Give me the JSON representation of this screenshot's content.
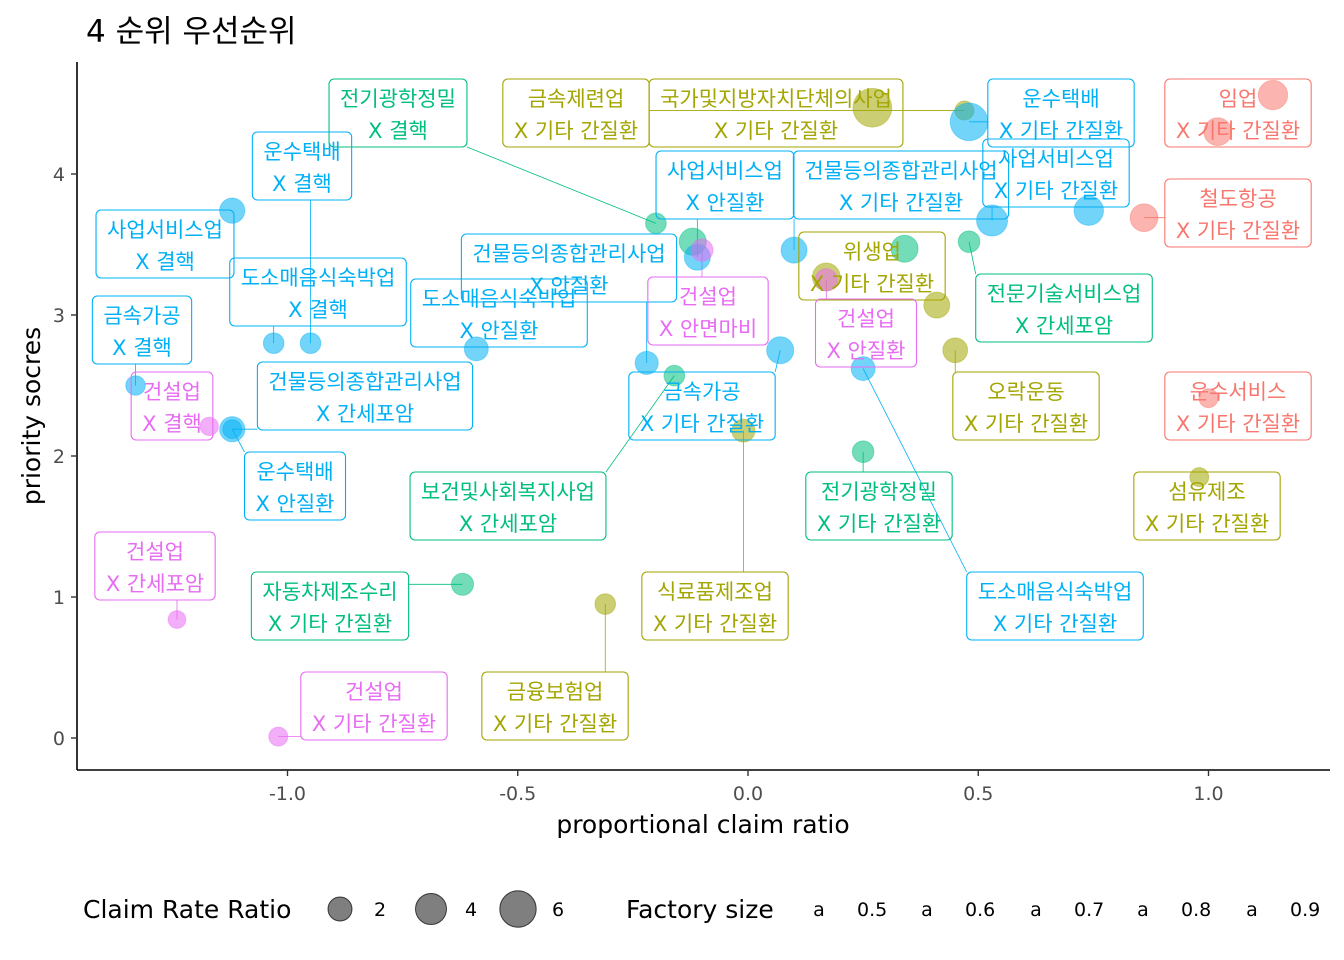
{
  "chart_data": {
    "type": "scatter",
    "title": "4 순위 우선순위",
    "xlabel": "proportional claim ratio",
    "ylabel": "priority socres",
    "xlim": [
      -1.46,
      1.26
    ],
    "ylim": [
      -0.22,
      4.75
    ],
    "x_ticks": [
      -1.0,
      -0.5,
      0.0,
      0.5,
      1.0
    ],
    "x_tick_labels": [
      "-1.0",
      "-0.5",
      "0.0",
      "0.5",
      "1.0"
    ],
    "y_ticks": [
      0,
      1,
      2,
      3,
      4
    ],
    "y_tick_labels": [
      "0",
      "1",
      "2",
      "3",
      "4"
    ],
    "grid": false,
    "legend_position": "bottom",
    "size_legend": {
      "title": "Claim Rate Ratio",
      "values": [
        2,
        4,
        6
      ],
      "labels": [
        "2",
        "4",
        "6"
      ]
    },
    "color_legend": {
      "title": "Factory size",
      "glyph": "a",
      "levels": [
        {
          "label": "0.5",
          "color": "#F8766D"
        },
        {
          "label": "0.6",
          "color": "#A3A500"
        },
        {
          "label": "0.7",
          "color": "#00BF7D"
        },
        {
          "label": "0.8",
          "color": "#00B0F6"
        },
        {
          "label": "0.9",
          "color": "#E76BF3"
        }
      ]
    },
    "points": [
      {
        "x": 1.14,
        "y": 4.56,
        "size": 3.5,
        "group": "0.5",
        "label": [
          "임업",
          "X 기타 간질환"
        ]
      },
      {
        "x": 1.02,
        "y": 4.3,
        "size": 3.0,
        "group": "0.5",
        "label": []
      },
      {
        "x": 0.86,
        "y": 3.69,
        "size": 3.0,
        "group": "0.5",
        "label": [
          "철도항공",
          "X 기타 간질환"
        ]
      },
      {
        "x": 1.0,
        "y": 2.41,
        "size": 1.0,
        "group": "0.5",
        "label": [
          "운수서비스",
          "X 기타 간질환"
        ]
      },
      {
        "x": 0.27,
        "y": 4.47,
        "size": 7.0,
        "group": "0.6",
        "label": [
          "국가및지방자치단체의사업",
          "X 기타 간질환"
        ]
      },
      {
        "x": 0.47,
        "y": 4.45,
        "size": 1.0,
        "group": "0.6",
        "label": [
          "금속제련업",
          "X 기타 간질환"
        ]
      },
      {
        "x": 0.17,
        "y": 3.27,
        "size": 3.0,
        "group": "0.6",
        "label": [
          "위생업",
          "X 기타 간질환"
        ]
      },
      {
        "x": 0.41,
        "y": 3.07,
        "size": 2.5,
        "group": "0.6",
        "label": []
      },
      {
        "x": 0.45,
        "y": 2.75,
        "size": 2.2,
        "group": "0.6",
        "label": [
          "오락운동",
          "X 기타 간질환"
        ]
      },
      {
        "x": 0.98,
        "y": 1.85,
        "size": 1.0,
        "group": "0.6",
        "label": [
          "섬유제조",
          "X 기타 간질환"
        ]
      },
      {
        "x": -0.01,
        "y": 2.18,
        "size": 1.8,
        "group": "0.6",
        "label": [
          "식료품제조업",
          "X 기타 간질환"
        ]
      },
      {
        "x": -0.31,
        "y": 0.95,
        "size": 1.3,
        "group": "0.6",
        "label": [
          "금융보험업",
          "X 기타 간질환"
        ]
      },
      {
        "x": -0.2,
        "y": 3.65,
        "size": 1.3,
        "group": "0.7",
        "label": [
          "전기광학정밀",
          "X 결핵"
        ]
      },
      {
        "x": -0.12,
        "y": 3.52,
        "size": 2.8,
        "group": "0.7",
        "label": []
      },
      {
        "x": 0.34,
        "y": 3.47,
        "size": 2.8,
        "group": "0.7",
        "label": []
      },
      {
        "x": 0.48,
        "y": 3.52,
        "size": 1.5,
        "group": "0.7",
        "label": [
          "전문기술서비스업",
          "X 간세포암"
        ]
      },
      {
        "x": -0.16,
        "y": 2.57,
        "size": 1.3,
        "group": "0.7",
        "label": [
          "보건및사회복지사업",
          "X 간세포암"
        ]
      },
      {
        "x": 0.25,
        "y": 2.03,
        "size": 1.5,
        "group": "0.7",
        "label": [
          "전기광학정밀",
          "X 기타 간질환"
        ]
      },
      {
        "x": -0.62,
        "y": 1.09,
        "size": 1.6,
        "group": "0.7",
        "label": [
          "자동차제조수리",
          "X 기타 간질환"
        ]
      },
      {
        "x": 0.48,
        "y": 4.37,
        "size": 6.5,
        "group": "0.8",
        "label": [
          "운수택배",
          "X 기타 간질환"
        ]
      },
      {
        "x": 0.53,
        "y": 3.67,
        "size": 4.0,
        "group": "0.8",
        "label": [
          "사업서비스업",
          "X 기타 간질환"
        ]
      },
      {
        "x": 0.74,
        "y": 3.74,
        "size": 3.5,
        "group": "0.8",
        "label": []
      },
      {
        "x": 0.1,
        "y": 3.46,
        "size": 2.5,
        "group": "0.8",
        "label": [
          "건물등의종합관리사업",
          "X 기타 간질환"
        ]
      },
      {
        "x": -0.11,
        "y": 3.41,
        "size": 2.5,
        "group": "0.8",
        "label": [
          "사업서비스업",
          "X 안질환"
        ]
      },
      {
        "x": -0.22,
        "y": 2.66,
        "size": 1.8,
        "group": "0.8",
        "label": [
          "건물등의종합관리사업",
          "X 안질환"
        ]
      },
      {
        "x": 0.07,
        "y": 2.75,
        "size": 2.8,
        "group": "0.8",
        "label": [
          "금속가공",
          "X 기타 간질환"
        ]
      },
      {
        "x": 0.25,
        "y": 2.62,
        "size": 2.0,
        "group": "0.8",
        "label": [
          "도소매음식숙박업",
          "X 기타 간질환"
        ]
      },
      {
        "x": -1.12,
        "y": 3.74,
        "size": 2.3,
        "group": "0.8",
        "label": [
          "사업서비스업",
          "X 결핵"
        ]
      },
      {
        "x": -1.03,
        "y": 2.8,
        "size": 1.3,
        "group": "0.8",
        "label": [
          "도소매음식숙박업",
          "X 결핵"
        ]
      },
      {
        "x": -0.95,
        "y": 2.8,
        "size": 1.3,
        "group": "0.8",
        "label": [
          "운수택배",
          "X 결핵"
        ]
      },
      {
        "x": -0.59,
        "y": 2.76,
        "size": 2.0,
        "group": "0.8",
        "label": [
          "도소매음식숙박업",
          "X 안질환"
        ]
      },
      {
        "x": -1.12,
        "y": 2.19,
        "size": 2.3,
        "group": "0.8",
        "label": [
          "건물등의종합관리사업",
          "X 간세포암"
        ]
      },
      {
        "x": -1.33,
        "y": 2.5,
        "size": 1.1,
        "group": "0.8",
        "label": [
          "금속가공",
          "X 결핵"
        ]
      },
      {
        "x": -1.12,
        "y": 2.19,
        "size": 1.0,
        "group": "0.8",
        "label": [
          "운수택배",
          "X 안질환"
        ]
      },
      {
        "x": -0.1,
        "y": 3.46,
        "size": 1.6,
        "group": "0.9",
        "label": [
          "건설업",
          "X 안면마비"
        ]
      },
      {
        "x": 0.17,
        "y": 3.25,
        "size": 1.6,
        "group": "0.9",
        "label": [
          "건설업",
          "X 안질환"
        ]
      },
      {
        "x": -1.17,
        "y": 2.21,
        "size": 0.9,
        "group": "0.9",
        "label": [
          "건설업",
          "X 결핵"
        ]
      },
      {
        "x": -1.24,
        "y": 0.84,
        "size": 0.8,
        "group": "0.9",
        "label": [
          "건설업",
          "X 간세포암"
        ]
      },
      {
        "x": -1.02,
        "y": 0.01,
        "size": 1.0,
        "group": "0.9",
        "label": [
          "건설업",
          "X 기타 간질환"
        ]
      }
    ]
  }
}
